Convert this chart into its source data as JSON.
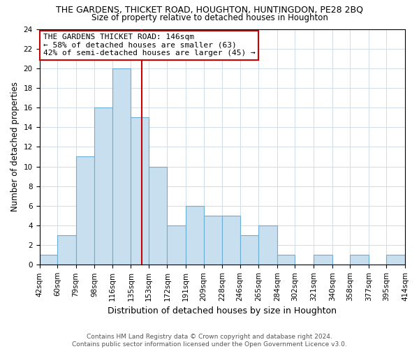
{
  "title": "THE GARDENS, THICKET ROAD, HOUGHTON, HUNTINGDON, PE28 2BQ",
  "subtitle": "Size of property relative to detached houses in Houghton",
  "xlabel": "Distribution of detached houses by size in Houghton",
  "ylabel": "Number of detached properties",
  "bin_edges": [
    42,
    60,
    79,
    98,
    116,
    135,
    153,
    172,
    191,
    209,
    228,
    246,
    265,
    284,
    302,
    321,
    340,
    358,
    377,
    395,
    414
  ],
  "bar_heights": [
    1,
    3,
    11,
    16,
    20,
    15,
    10,
    4,
    6,
    5,
    5,
    3,
    4,
    1,
    0,
    1,
    0,
    1,
    0,
    1
  ],
  "bar_color": "#c8dff0",
  "bar_edge_color": "#6aadd5",
  "ref_line_x": 146,
  "ref_line_color": "#cc0000",
  "ylim": [
    0,
    24
  ],
  "yticks": [
    0,
    2,
    4,
    6,
    8,
    10,
    12,
    14,
    16,
    18,
    20,
    22,
    24
  ],
  "annotation_title": "THE GARDENS THICKET ROAD: 146sqm",
  "annotation_line1": "← 58% of detached houses are smaller (63)",
  "annotation_line2": "42% of semi-detached houses are larger (45) →",
  "annotation_box_color": "#ffffff",
  "annotation_box_edge": "#cc0000",
  "footer_line1": "Contains HM Land Registry data © Crown copyright and database right 2024.",
  "footer_line2": "Contains public sector information licensed under the Open Government Licence v3.0.",
  "background_color": "#ffffff",
  "grid_color": "#d0dde8",
  "title_fontsize": 9,
  "subtitle_fontsize": 8.5,
  "tick_fontsize": 7.5,
  "ylabel_fontsize": 8.5,
  "xlabel_fontsize": 9
}
